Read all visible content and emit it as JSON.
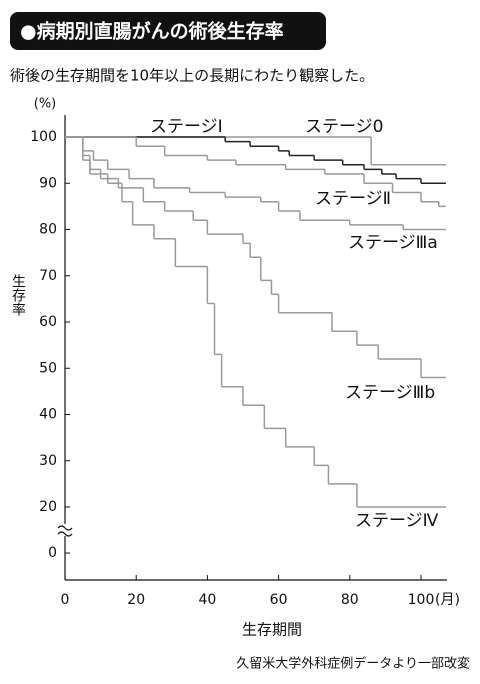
{
  "chart_data": {
    "type": "line",
    "step": "post",
    "title": "●病期別直腸がんの術後生存率",
    "subtitle": "術後の生存期間を10年以上の長期にわたり観察した。",
    "y_unit": "(%)",
    "x_unit": "(月)",
    "y_label": "生存率",
    "x_label": "生存期間",
    "source": "久留米大学外科症例データより一部改変",
    "xlim": [
      0,
      107
    ],
    "xticks": [
      0,
      20,
      40,
      60,
      80,
      100
    ],
    "ylim": [
      0,
      100
    ],
    "yticks": [
      0,
      20,
      30,
      40,
      50,
      60,
      70,
      80,
      90,
      100
    ],
    "series": [
      {
        "name": "ステージⅠ",
        "color": "#999999",
        "x": [
          0,
          86,
          107
        ],
        "values": [
          100,
          94,
          94
        ]
      },
      {
        "name": "ステージ0",
        "color": "#222222",
        "x": [
          0,
          45,
          52,
          60,
          63,
          70,
          78,
          84,
          89,
          93,
          100,
          107
        ],
        "values": [
          100,
          99,
          98,
          97,
          96,
          95,
          94,
          93,
          92,
          91,
          90,
          90
        ]
      },
      {
        "name": "ステージⅡ",
        "color": "#999999",
        "x": [
          0,
          20,
          28,
          40,
          48,
          62,
          73,
          84,
          92,
          100,
          105,
          107
        ],
        "values": [
          100,
          98,
          96,
          95,
          94,
          93,
          92,
          90,
          88,
          86,
          85,
          85
        ]
      },
      {
        "name": "ステージⅢa",
        "color": "#999999",
        "x": [
          0,
          5,
          8,
          12,
          18,
          25,
          35,
          45,
          55,
          60,
          66,
          80,
          95,
          107
        ],
        "values": [
          100,
          97,
          95,
          93,
          91,
          89,
          88,
          87,
          86,
          84,
          82,
          81,
          80,
          80
        ]
      },
      {
        "name": "ステージⅢb",
        "color": "#999999",
        "x": [
          0,
          5,
          7,
          10,
          15,
          22,
          28,
          36,
          40,
          50,
          52,
          55,
          58,
          60,
          75,
          82,
          88,
          100,
          107
        ],
        "values": [
          100,
          96,
          93,
          91,
          89,
          86,
          84,
          82,
          79,
          77,
          74,
          69,
          66,
          62,
          58,
          55,
          52,
          48,
          48
        ]
      },
      {
        "name": "ステージⅣ",
        "color": "#999999",
        "x": [
          0,
          5,
          7,
          12,
          16,
          19,
          25,
          31,
          40,
          42,
          44,
          50,
          56,
          62,
          70,
          74,
          82,
          107
        ],
        "values": [
          100,
          95,
          92,
          90,
          86,
          81,
          78,
          72,
          64,
          53,
          46,
          42,
          37,
          33,
          29,
          25,
          20,
          20
        ]
      }
    ]
  }
}
